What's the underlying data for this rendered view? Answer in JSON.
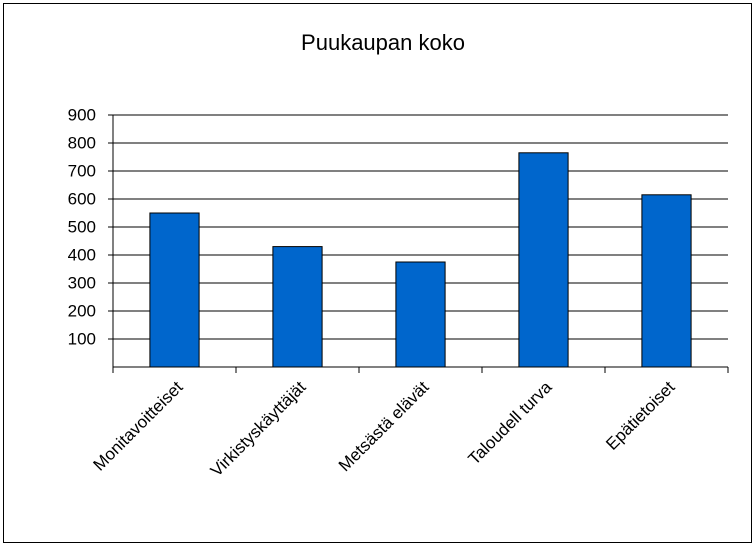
{
  "chart_data": {
    "type": "bar",
    "title": "Puukaupan koko",
    "categories": [
      "Monitavoitteiset",
      "Virkistyskäyttäjät",
      "Metsästä elävät",
      "Taloudell turva",
      "Epätietoiset"
    ],
    "values": [
      550,
      430,
      375,
      765,
      615
    ],
    "color": "#0066cc",
    "ylim": [
      0,
      900
    ],
    "yticks": [
      100,
      200,
      300,
      400,
      500,
      600,
      700,
      800,
      900
    ],
    "grid": true
  }
}
